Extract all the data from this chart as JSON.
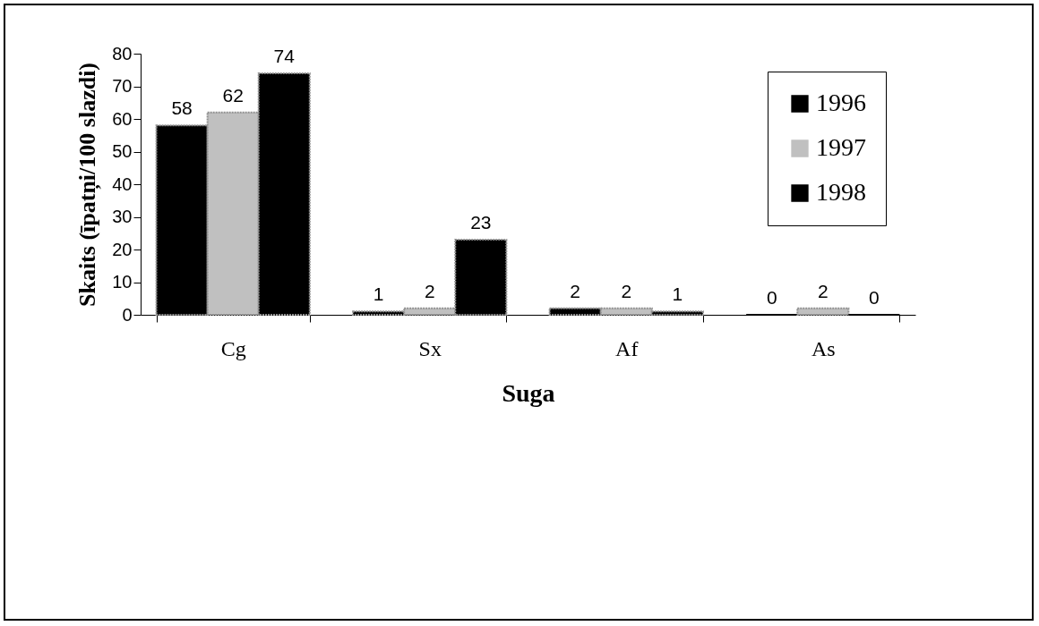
{
  "chart_data": {
    "type": "bar",
    "xlabel": "Suga",
    "ylabel": "Skaits (īpatņi/100 slazdi)",
    "categories": [
      "Cg",
      "Sx",
      "Af",
      "As"
    ],
    "series": [
      {
        "name": "1996",
        "color": "#000000",
        "values": [
          58,
          1,
          2,
          0
        ]
      },
      {
        "name": "1997",
        "color": "#c0c0c0",
        "values": [
          62,
          2,
          2,
          2
        ]
      },
      {
        "name": "1998",
        "color": "#000000",
        "values": [
          74,
          23,
          1,
          0
        ]
      }
    ],
    "ylim": [
      0,
      80
    ],
    "yticks": [
      0,
      10,
      20,
      30,
      40,
      50,
      60,
      70,
      80
    ],
    "legend": "top right",
    "data_labels": true
  }
}
